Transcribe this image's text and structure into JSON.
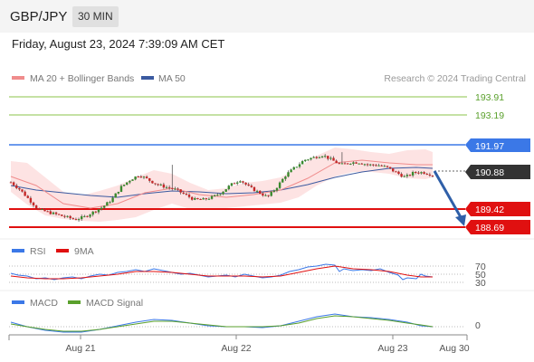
{
  "header": {
    "symbol": "GBP/JPY",
    "timeframe": "30 MIN"
  },
  "date_line": "Friday, August 23, 2024 7:39:09 AM CET",
  "chart_data": [
    {
      "type": "candlestick",
      "panel": "price",
      "legend": [
        {
          "name": "MA 20 + Bollinger Bands",
          "color": "#f08c8c"
        },
        {
          "name": "MA 50",
          "color": "#3b5aa0"
        }
      ],
      "source": "Research © 2024 Trading Central",
      "levels": [
        {
          "label": "193.91",
          "value": 193.91,
          "kind": "resistance",
          "color": "#5aa02c"
        },
        {
          "label": "193.19",
          "value": 193.19,
          "kind": "resistance",
          "color": "#5aa02c"
        },
        {
          "label": "191.97",
          "value": 191.97,
          "kind": "pivot",
          "color": "#3b78e7"
        },
        {
          "label": "190.88",
          "value": 190.88,
          "kind": "last",
          "color": "#333333"
        },
        {
          "label": "189.42",
          "value": 189.42,
          "kind": "support",
          "color": "#e01010"
        },
        {
          "label": "188.69",
          "value": 188.69,
          "kind": "support",
          "color": "#e01010"
        }
      ],
      "x_ticks": [
        "Aug 21",
        "Aug 22",
        "Aug 23",
        "Aug 30"
      ],
      "close_path": [
        190.5,
        190.2,
        189.8,
        189.4,
        189.3,
        189.2,
        189.1,
        189.0,
        189.1,
        189.3,
        189.5,
        189.8,
        190.3,
        190.6,
        190.8,
        190.6,
        190.4,
        190.3,
        190.2,
        190.0,
        189.8,
        189.8,
        189.9,
        190.1,
        190.4,
        190.6,
        190.3,
        190.1,
        189.9,
        190.3,
        190.8,
        191.1,
        191.4,
        191.5,
        191.6,
        191.4,
        191.2,
        191.3,
        191.3,
        191.2,
        191.2,
        191.1,
        190.9,
        190.7,
        190.9,
        190.9,
        190.8
      ],
      "forecast_arrow": {
        "from": 190.88,
        "to": 188.69,
        "direction": "down"
      }
    },
    {
      "type": "line",
      "panel": "RSI",
      "legend": [
        {
          "name": "RSI",
          "color": "#3b78e7"
        },
        {
          "name": "9MA",
          "color": "#e01010"
        }
      ],
      "y_ticks": [
        "70",
        "50",
        "30"
      ]
    },
    {
      "type": "line",
      "panel": "MACD",
      "legend": [
        {
          "name": "MACD",
          "color": "#3b78e7"
        },
        {
          "name": "MACD Signal",
          "color": "#5aa02c"
        }
      ],
      "y_ticks": [
        "0"
      ]
    }
  ]
}
